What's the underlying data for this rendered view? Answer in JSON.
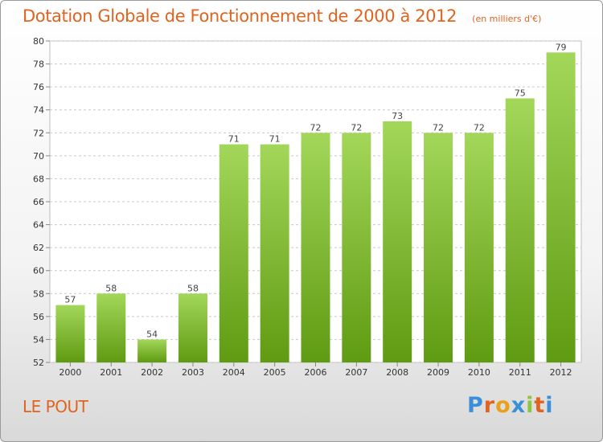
{
  "chart_data": {
    "type": "bar",
    "title": "Dotation Globale de Fonctionnement de 2000 à 2012",
    "subtitle": "(en milliers d'€)",
    "categories": [
      "2000",
      "2001",
      "2002",
      "2003",
      "2004",
      "2005",
      "2006",
      "2007",
      "2008",
      "2009",
      "2010",
      "2011",
      "2012"
    ],
    "values": [
      57,
      58,
      54,
      58,
      71,
      71,
      72,
      72,
      73,
      72,
      72,
      75,
      79
    ],
    "ylim": [
      52,
      80
    ],
    "yticks": [
      52,
      54,
      56,
      58,
      60,
      62,
      64,
      66,
      68,
      70,
      72,
      74,
      76,
      78,
      80
    ],
    "grid": true,
    "xlabel": "",
    "ylabel": "",
    "colors": {
      "bar_top": "#a3d75a",
      "bar_bottom": "#5f9b12",
      "grid": "#c8c8c8",
      "accent": "#e0641f"
    }
  },
  "footer": {
    "commune": "LE POUT",
    "logo": [
      "P",
      "r",
      "o",
      "x",
      "i",
      "t",
      "i"
    ],
    "logo_colors": [
      "#3a8fd8",
      "#e0641f",
      "#e8a21a",
      "#3a8fd8",
      "#8cc63f",
      "#e0641f",
      "#3a8fd8"
    ]
  }
}
